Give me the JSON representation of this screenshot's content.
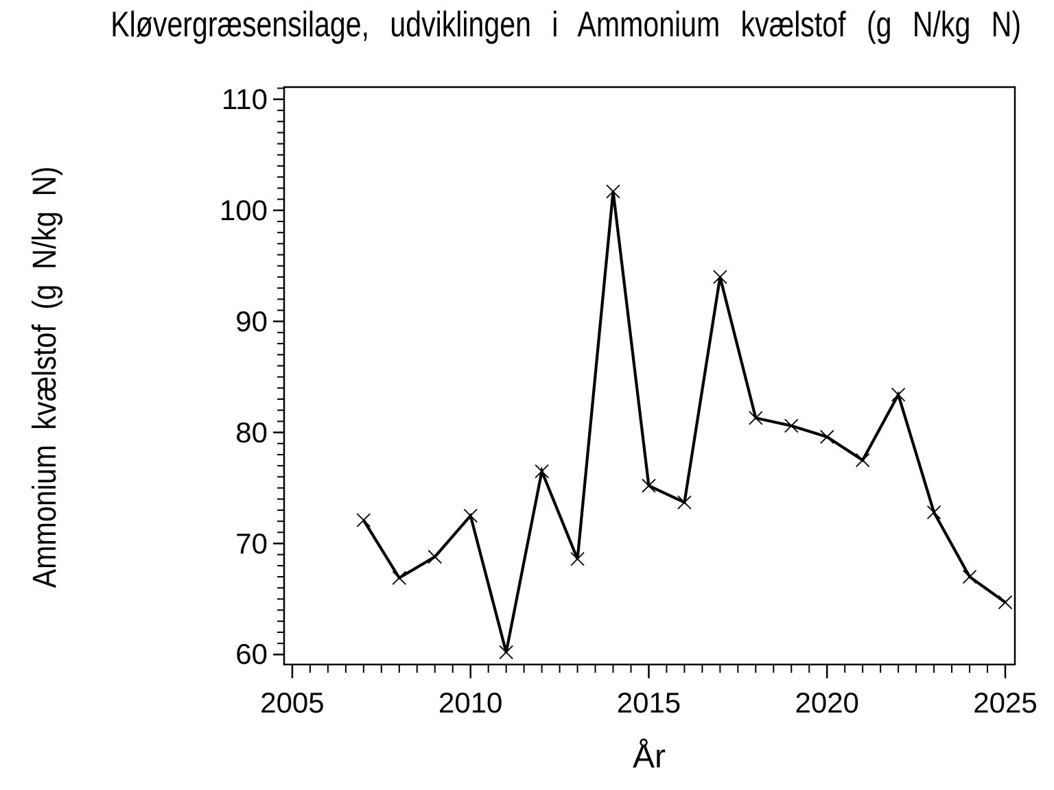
{
  "chart_data": {
    "type": "line",
    "title": "Kløvergræsensilage, udviklingen i Ammonium kvælstof (g N/kg N)",
    "xlabel": "År",
    "ylabel": "Ammonium kvælstof (g N/kg N)",
    "x": [
      2007,
      2008,
      2009,
      2010,
      2011,
      2012,
      2013,
      2014,
      2015,
      2016,
      2017,
      2018,
      2019,
      2020,
      2021,
      2022,
      2023,
      2024,
      2025
    ],
    "y": [
      72.1,
      66.9,
      68.8,
      72.5,
      60.2,
      76.5,
      68.6,
      101.7,
      75.2,
      73.7,
      94.0,
      81.3,
      80.6,
      79.6,
      77.5,
      83.4,
      72.8,
      67.0,
      64.7
    ],
    "xlim": [
      2004.77,
      2025.27
    ],
    "ylim": [
      59.1,
      111.1
    ],
    "x_major_ticks": [
      2005,
      2010,
      2015,
      2020,
      2025
    ],
    "y_major_ticks": [
      60,
      70,
      80,
      90,
      100,
      110
    ],
    "x_minor_step": 0.5,
    "y_minor_step": 1,
    "grid": false,
    "legend": false,
    "marker": "x",
    "line_color": "#000000",
    "axis_color": "#000000",
    "background_color": "#ffffff"
  }
}
